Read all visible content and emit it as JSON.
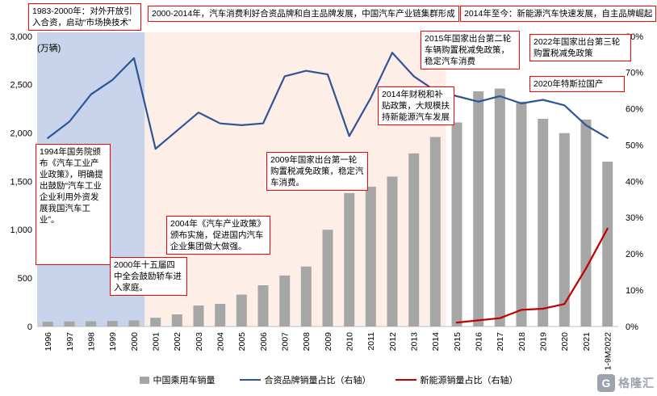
{
  "chart_data": {
    "type": "bar",
    "categories": [
      "1996",
      "1997",
      "1998",
      "1999",
      "2000",
      "2001",
      "2002",
      "2003",
      "2004",
      "2005",
      "2006",
      "2007",
      "2008",
      "2009",
      "2010",
      "2011",
      "2012",
      "2013",
      "2014",
      "2015",
      "2016",
      "2017",
      "2018",
      "2019",
      "2020",
      "2021",
      "1-9M2022"
    ],
    "series": [
      {
        "name": "中国乘用车销量",
        "kind": "bar",
        "axis": "left",
        "color": "#a6a6a6",
        "values": [
          50,
          52,
          54,
          58,
          63,
          90,
          125,
          217,
          234,
          330,
          426,
          527,
          620,
          1000,
          1380,
          1445,
          1550,
          1790,
          1960,
          2110,
          2432,
          2460,
          2325,
          2148,
          2000,
          2140,
          1705
        ]
      },
      {
        "name": "合资品牌销量占比（右轴）",
        "kind": "line",
        "axis": "right",
        "color": "#2f5597",
        "values": [
          52,
          56.5,
          64,
          68,
          74,
          49,
          54,
          59,
          56,
          55.5,
          56,
          69,
          70.5,
          69.5,
          52.5,
          63,
          75.5,
          69,
          65,
          63.5,
          62,
          63.5,
          61.5,
          62.5,
          61,
          55.5,
          52
        ]
      },
      {
        "name": "新能源销量占比（右轴）",
        "kind": "line",
        "axis": "right",
        "color": "#c00000",
        "values": [
          null,
          null,
          null,
          null,
          null,
          null,
          null,
          null,
          null,
          null,
          null,
          null,
          null,
          null,
          null,
          null,
          null,
          null,
          null,
          1.1,
          1.7,
          2.3,
          4.6,
          4.9,
          6.2,
          16,
          27
        ]
      }
    ],
    "left_axis": {
      "unit": "(万辆)",
      "min": 0,
      "max": 3000,
      "ticks": [
        "0",
        "500",
        "1,000",
        "1,500",
        "2,000",
        "2,500",
        "3,000"
      ]
    },
    "right_axis": {
      "min": 0,
      "max": 80,
      "ticks": [
        "0%",
        "10%",
        "20%",
        "30%",
        "40%",
        "50%",
        "60%",
        "70%",
        "80%"
      ]
    },
    "shaded_regions": [
      {
        "from_index": 0,
        "to_index": 4,
        "color": "#c7d4eb"
      },
      {
        "from_index": 5,
        "to_index": 18,
        "color": "#fdefe8"
      }
    ],
    "legend_position": "bottom",
    "grid": false
  },
  "annotations": {
    "era1": "1983-2000年：对外开放引入合资，启动“市场换技术”",
    "era2": "2000-2014年，汽车消费利好合资品牌和自主品牌发展，中国汽车产业链集群形成",
    "era3": "2014年至今：新能源汽车快速发展，自主品牌崛起",
    "y1994": "1994年国务院颁布《汽车工业产业政策》，明确提出鼓励“汽车工业企业利用外资发展我国汽车工业”。",
    "y2000": "2000年十五届四中全会鼓励轿车进入家庭。",
    "y2004": "2004年《汽车产业政策》颁布实施，促进国内汽车企业集团做大做强。",
    "y2009": "2009年国家出台第一轮购置税减免政策，稳定汽车消费。",
    "y2014": "2014年财税和补贴政策，大规模扶持新能源汽车发展",
    "y2015": "2015年国家出台第二轮车辆购置税减免政策，稳定汽车消费",
    "y2020": "2020年特斯拉国产",
    "y2022": "2022年国家出台第三轮购置税减免政策"
  },
  "watermark": {
    "text": "格隆汇",
    "icon": "G"
  }
}
